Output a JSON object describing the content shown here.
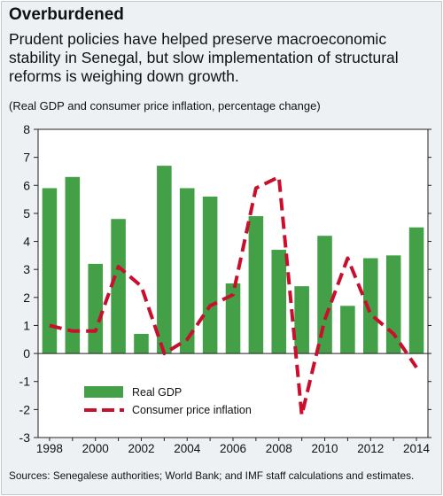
{
  "header": {
    "title": "Overburdened",
    "subtitle": "Prudent policies have helped preserve macroeconomic stability in Senegal, but slow implementation of structural reforms is weighing down growth.",
    "note": "(Real GDP and consumer price inflation, percentage change)"
  },
  "footer": {
    "source": "Sources: Senegalese authorities; World Bank; and IMF staff calculations and estimates."
  },
  "colors": {
    "bar": "#44a047",
    "line": "#c8102e",
    "panel": "#eef1f4"
  },
  "chart_data": {
    "type": "bar",
    "x": [
      1998,
      1999,
      2000,
      2001,
      2002,
      2003,
      2004,
      2005,
      2006,
      2007,
      2008,
      2009,
      2010,
      2011,
      2012,
      2013,
      2014
    ],
    "x_tick_labels": [
      "1998",
      "2000",
      "2002",
      "2004",
      "2006",
      "2008",
      "2010",
      "2012",
      "2014"
    ],
    "ylim": [
      -3,
      8
    ],
    "y_ticks": [
      8,
      7,
      6,
      5,
      4,
      3,
      2,
      1,
      0,
      -1,
      -2,
      -3
    ],
    "grid": false,
    "legend_position": "lower-left",
    "series": [
      {
        "name": "Real GDP",
        "type": "bar",
        "values": [
          5.9,
          6.3,
          3.2,
          4.8,
          0.7,
          6.7,
          5.9,
          5.6,
          2.5,
          4.9,
          3.7,
          2.4,
          4.2,
          1.7,
          3.4,
          3.5,
          4.5
        ]
      },
      {
        "name": "Consumer price inflation",
        "type": "line",
        "style": "dashed",
        "values": [
          1.0,
          0.8,
          0.8,
          3.1,
          2.4,
          0.0,
          0.5,
          1.7,
          2.1,
          5.9,
          6.3,
          -2.2,
          1.2,
          3.4,
          1.4,
          0.7,
          -0.5
        ]
      }
    ]
  }
}
